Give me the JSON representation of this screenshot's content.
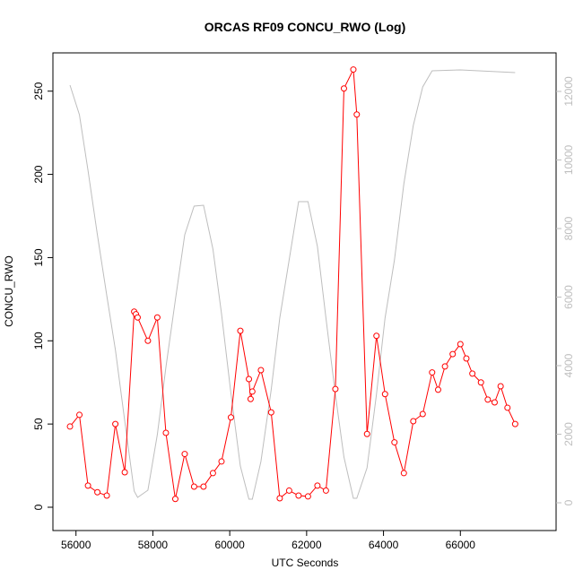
{
  "chart_data": {
    "type": "line",
    "title": "ORCAS RF09 CONCU_RWO (Log)",
    "xlabel": "UTC Seconds",
    "ylabel": "CONCU_RWO",
    "xlim": [
      55400,
      68490
    ],
    "xticks": [
      56000,
      58000,
      60000,
      62000,
      64000,
      66000
    ],
    "ylim": [
      -14,
      273
    ],
    "yticks": [
      0,
      50,
      100,
      150,
      200,
      250
    ],
    "y2lim": [
      -810,
      13124
    ],
    "y2ticks": [
      0,
      2000,
      4000,
      6000,
      8000,
      10000,
      12000
    ],
    "y2color": "#bebebe",
    "series": [
      {
        "color": "#ff0000",
        "markers": true,
        "x": [
          55844,
          56089,
          56312,
          56557,
          56802,
          57024,
          57269,
          57514,
          57559,
          57604,
          57871,
          58116,
          58339,
          58584,
          58829,
          59073,
          59318,
          59563,
          59786,
          60031,
          60276,
          60499,
          60543,
          60588,
          60811,
          61078,
          61301,
          61546,
          61791,
          62036,
          62281,
          62503,
          62748,
          62971,
          63216,
          63305,
          63572,
          63817,
          64040,
          64285,
          64530,
          64775,
          65020,
          65265,
          65421,
          65599,
          65800,
          66000,
          66156,
          66312,
          66535,
          66713,
          66891,
          67047,
          67225,
          67425
        ],
        "values": [
          48.5,
          55.5,
          13,
          9,
          7,
          50,
          21,
          117.5,
          116,
          114,
          100,
          114,
          44.7,
          5,
          32,
          12.4,
          12.4,
          20.5,
          27.5,
          54,
          106,
          77,
          65,
          69.5,
          82.4,
          57,
          5.4,
          10,
          7,
          6.5,
          13,
          10,
          71,
          251.6,
          263,
          236,
          44,
          103,
          68,
          39,
          20.5,
          51.7,
          56,
          81,
          70.6,
          84.6,
          92,
          98,
          89.4,
          80.3,
          75,
          64.7,
          63,
          72.7,
          59.8,
          50
        ]
      },
      {
        "color": "#bebebe",
        "axis": "y2",
        "x": [
          55844,
          56089,
          56312,
          56557,
          56802,
          57024,
          57269,
          57514,
          57604,
          57871,
          58116,
          58339,
          58584,
          58829,
          59073,
          59318,
          59563,
          59786,
          60031,
          60276,
          60499,
          60588,
          60811,
          61078,
          61301,
          61546,
          61791,
          62036,
          62281,
          62503,
          62748,
          62971,
          63216,
          63305,
          63572,
          63817,
          64040,
          64285,
          64530,
          64775,
          65020,
          65265,
          66000,
          67425
        ],
        "values": [
          12183,
          11320,
          9700,
          7817,
          6039,
          4471,
          2380,
          340,
          157,
          366,
          1987,
          3948,
          5908,
          7817,
          8654,
          8680,
          7399,
          5516,
          3190,
          1072,
          105,
          105,
          1203,
          3294,
          5386,
          7085,
          8784,
          8784,
          7477,
          5386,
          3163,
          1333,
          130,
          130,
          1020,
          3163,
          5386,
          7085,
          9307,
          11007,
          12131,
          12601,
          12627,
          12549
        ]
      }
    ]
  }
}
